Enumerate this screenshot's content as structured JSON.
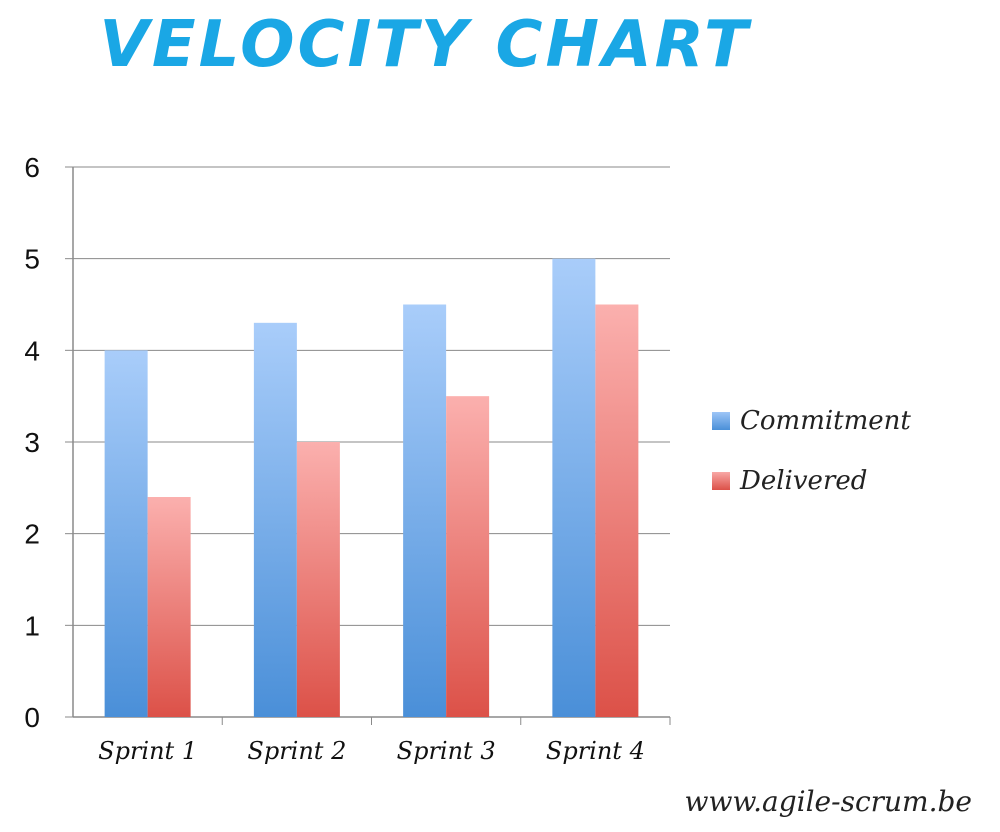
{
  "chart_data": {
    "type": "bar",
    "title": "VELOCITY CHART",
    "categories": [
      "Sprint 1",
      "Sprint 2",
      "Sprint 3",
      "Sprint 4"
    ],
    "series": [
      {
        "name": "Commitment",
        "values": [
          4,
          4.3,
          4.5,
          5
        ],
        "color": "#6aa3e6"
      },
      {
        "name": "Delivered",
        "values": [
          2.4,
          3,
          3.5,
          4.5
        ],
        "color": "#e7706a"
      }
    ],
    "ylim": [
      0,
      6
    ],
    "yticks": [
      "0",
      "1",
      "2",
      "3",
      "4",
      "5",
      "6"
    ],
    "grid": true,
    "legend_position": "right"
  },
  "source_text": "www.agile-scrum.be"
}
